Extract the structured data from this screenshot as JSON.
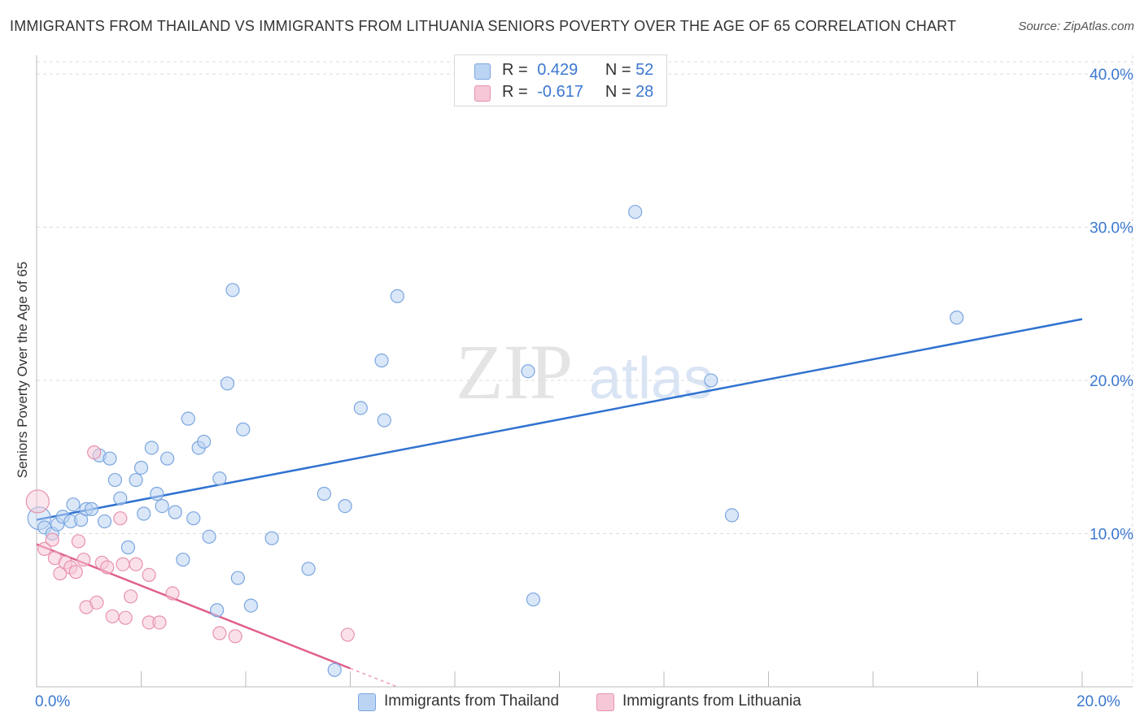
{
  "title": "IMMIGRANTS FROM THAILAND VS IMMIGRANTS FROM LITHUANIA SENIORS POVERTY OVER THE AGE OF 65 CORRELATION CHART",
  "source": "Source: ZipAtlas.com",
  "watermark": {
    "zip": "ZIP",
    "atlas": "atlas"
  },
  "legend": {
    "thailand": {
      "r_label": "R =",
      "r_value": "0.429",
      "n_label": "N =",
      "n_value": "52"
    },
    "lithuania": {
      "r_label": "R =",
      "r_value": "-0.617",
      "n_label": "N =",
      "n_value": "28"
    }
  },
  "chart_data": {
    "type": "scatter",
    "title": "IMMIGRANTS FROM THAILAND VS IMMIGRANTS FROM LITHUANIA SENIORS POVERTY OVER THE AGE OF 65 CORRELATION CHART",
    "xlabel": "",
    "ylabel": "Seniors Poverty Over the Age of 65",
    "xlim": [
      0,
      20
    ],
    "ylim": [
      0,
      40.8
    ],
    "x_tick_labels": [
      {
        "value": 0,
        "label": "0.0%"
      },
      {
        "value": 20,
        "label": "20.0%"
      }
    ],
    "y_tick_labels": [
      {
        "value": 10,
        "label": "10.0%"
      },
      {
        "value": 20,
        "label": "20.0%"
      },
      {
        "value": 30,
        "label": "30.0%"
      },
      {
        "value": 40,
        "label": "40.0%"
      }
    ],
    "x_minor_ticks": [
      0,
      2,
      4,
      6,
      8,
      10,
      12,
      14,
      16,
      18,
      20
    ],
    "grid": true,
    "series": [
      {
        "name": "Immigrants from Thailand",
        "color": "#7aa6e0",
        "fill": "#bcd4f3",
        "line_color": "#3072d0",
        "trend": {
          "x": [
            0,
            20
          ],
          "y": [
            10.9,
            24.0
          ]
        },
        "points": [
          {
            "x": 0.05,
            "y": 11.0
          },
          {
            "x": 0.15,
            "y": 10.4
          },
          {
            "x": 0.3,
            "y": 10.0
          },
          {
            "x": 0.4,
            "y": 10.6
          },
          {
            "x": 0.5,
            "y": 11.1
          },
          {
            "x": 0.65,
            "y": 10.8
          },
          {
            "x": 0.7,
            "y": 11.9
          },
          {
            "x": 0.85,
            "y": 10.9
          },
          {
            "x": 0.95,
            "y": 11.6
          },
          {
            "x": 1.05,
            "y": 11.6
          },
          {
            "x": 1.2,
            "y": 15.1
          },
          {
            "x": 1.3,
            "y": 10.8
          },
          {
            "x": 1.4,
            "y": 14.9
          },
          {
            "x": 1.5,
            "y": 13.5
          },
          {
            "x": 1.6,
            "y": 12.3
          },
          {
            "x": 1.75,
            "y": 9.1
          },
          {
            "x": 1.9,
            "y": 13.5
          },
          {
            "x": 2.0,
            "y": 14.3
          },
          {
            "x": 2.05,
            "y": 11.3
          },
          {
            "x": 2.2,
            "y": 15.6
          },
          {
            "x": 2.3,
            "y": 12.6
          },
          {
            "x": 2.4,
            "y": 11.8
          },
          {
            "x": 2.5,
            "y": 14.9
          },
          {
            "x": 2.65,
            "y": 11.4
          },
          {
            "x": 2.8,
            "y": 8.3
          },
          {
            "x": 2.9,
            "y": 17.5
          },
          {
            "x": 3.0,
            "y": 11.0
          },
          {
            "x": 3.1,
            "y": 15.6
          },
          {
            "x": 3.2,
            "y": 16.0
          },
          {
            "x": 3.3,
            "y": 9.8
          },
          {
            "x": 3.45,
            "y": 5.0
          },
          {
            "x": 3.5,
            "y": 13.6
          },
          {
            "x": 3.65,
            "y": 19.8
          },
          {
            "x": 3.75,
            "y": 25.9
          },
          {
            "x": 3.85,
            "y": 7.1
          },
          {
            "x": 3.95,
            "y": 16.8
          },
          {
            "x": 4.1,
            "y": 5.3
          },
          {
            "x": 4.5,
            "y": 9.7
          },
          {
            "x": 5.2,
            "y": 7.7
          },
          {
            "x": 5.5,
            "y": 12.6
          },
          {
            "x": 5.7,
            "y": 1.1
          },
          {
            "x": 5.9,
            "y": 11.8
          },
          {
            "x": 6.2,
            "y": 18.2
          },
          {
            "x": 6.6,
            "y": 21.3
          },
          {
            "x": 6.65,
            "y": 17.4
          },
          {
            "x": 6.9,
            "y": 25.5
          },
          {
            "x": 9.4,
            "y": 20.6
          },
          {
            "x": 9.5,
            "y": 5.7
          },
          {
            "x": 11.45,
            "y": 31.0
          },
          {
            "x": 12.9,
            "y": 20.0
          },
          {
            "x": 13.3,
            "y": 11.2
          },
          {
            "x": 17.6,
            "y": 24.1
          }
        ]
      },
      {
        "name": "Immigrants from Lithuania",
        "color": "#e892ad",
        "fill": "#f6c8d7",
        "line_color": "#e0608a",
        "trend": {
          "x": [
            0,
            6.0
          ],
          "y": [
            9.3,
            1.2
          ]
        },
        "trend_dashed": {
          "x": [
            6.0,
            6.9
          ],
          "y": [
            1.2,
            0.0
          ]
        },
        "points": [
          {
            "x": 0.02,
            "y": 12.1
          },
          {
            "x": 0.15,
            "y": 9.0
          },
          {
            "x": 0.3,
            "y": 9.6
          },
          {
            "x": 0.35,
            "y": 8.4
          },
          {
            "x": 0.45,
            "y": 7.4
          },
          {
            "x": 0.55,
            "y": 8.1
          },
          {
            "x": 0.65,
            "y": 7.8
          },
          {
            "x": 0.75,
            "y": 7.5
          },
          {
            "x": 0.8,
            "y": 9.5
          },
          {
            "x": 0.9,
            "y": 8.3
          },
          {
            "x": 0.95,
            "y": 5.2
          },
          {
            "x": 1.1,
            "y": 15.3
          },
          {
            "x": 1.15,
            "y": 5.5
          },
          {
            "x": 1.25,
            "y": 8.1
          },
          {
            "x": 1.35,
            "y": 7.8
          },
          {
            "x": 1.45,
            "y": 4.6
          },
          {
            "x": 1.6,
            "y": 11.0
          },
          {
            "x": 1.65,
            "y": 8.0
          },
          {
            "x": 1.7,
            "y": 4.5
          },
          {
            "x": 1.8,
            "y": 5.9
          },
          {
            "x": 1.9,
            "y": 8.0
          },
          {
            "x": 2.15,
            "y": 7.3
          },
          {
            "x": 2.15,
            "y": 4.2
          },
          {
            "x": 2.35,
            "y": 4.2
          },
          {
            "x": 2.6,
            "y": 6.1
          },
          {
            "x": 3.5,
            "y": 3.5
          },
          {
            "x": 3.8,
            "y": 3.3
          },
          {
            "x": 5.95,
            "y": 3.4
          }
        ]
      }
    ]
  }
}
